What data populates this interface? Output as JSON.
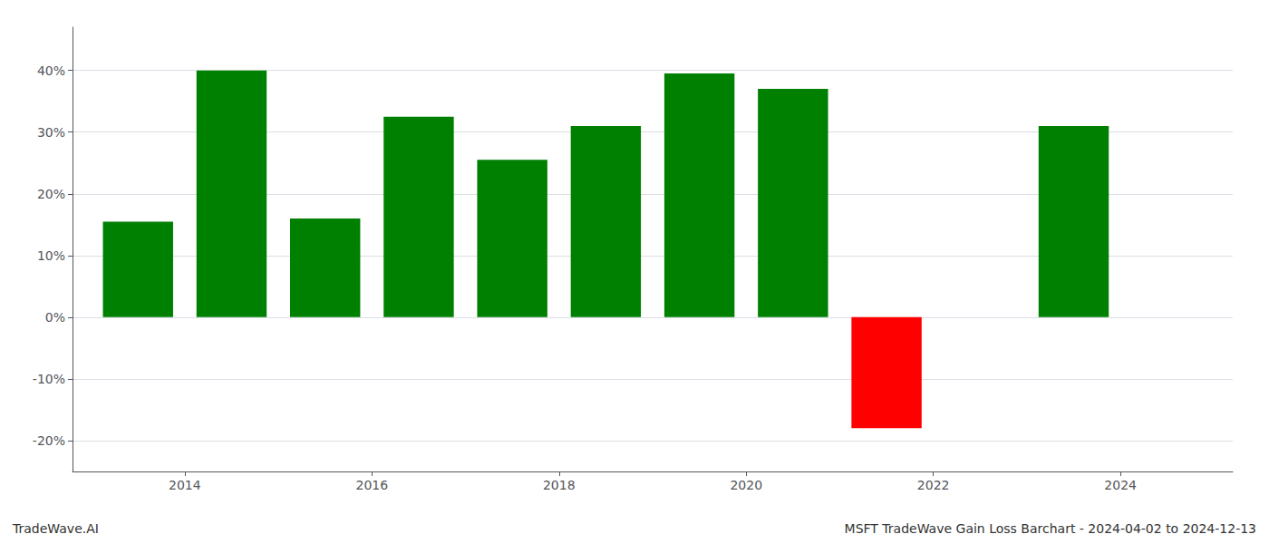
{
  "chart_data": {
    "type": "bar",
    "x": [
      2013.5,
      2014.5,
      2015.5,
      2016.5,
      2017.5,
      2018.5,
      2019.5,
      2020.5,
      2021.5,
      2023.5
    ],
    "values": [
      15.5,
      40.0,
      16.0,
      32.5,
      25.5,
      31.0,
      39.5,
      37.0,
      -18.0,
      31.0
    ],
    "colors": [
      "#008000",
      "#008000",
      "#008000",
      "#008000",
      "#008000",
      "#008000",
      "#008000",
      "#008000",
      "#ff0000",
      "#008000"
    ],
    "xlim": [
      2012.8,
      2025.2
    ],
    "xticks": [
      2014,
      2016,
      2018,
      2020,
      2022,
      2024
    ],
    "ylim": [
      -25,
      47
    ],
    "yticks": [
      {
        "value": -20,
        "label": "-20%"
      },
      {
        "value": -10,
        "label": "-10%"
      },
      {
        "value": 0,
        "label": "0%"
      },
      {
        "value": 10,
        "label": "10%"
      },
      {
        "value": 20,
        "label": "20%"
      },
      {
        "value": 30,
        "label": "30%"
      },
      {
        "value": 40,
        "label": "40%"
      }
    ],
    "grid": true,
    "annotations": [
      "TradeWave.AI",
      "MSFT TradeWave Gain Loss Barchart - 2024-04-02 to 2024-12-13"
    ]
  }
}
